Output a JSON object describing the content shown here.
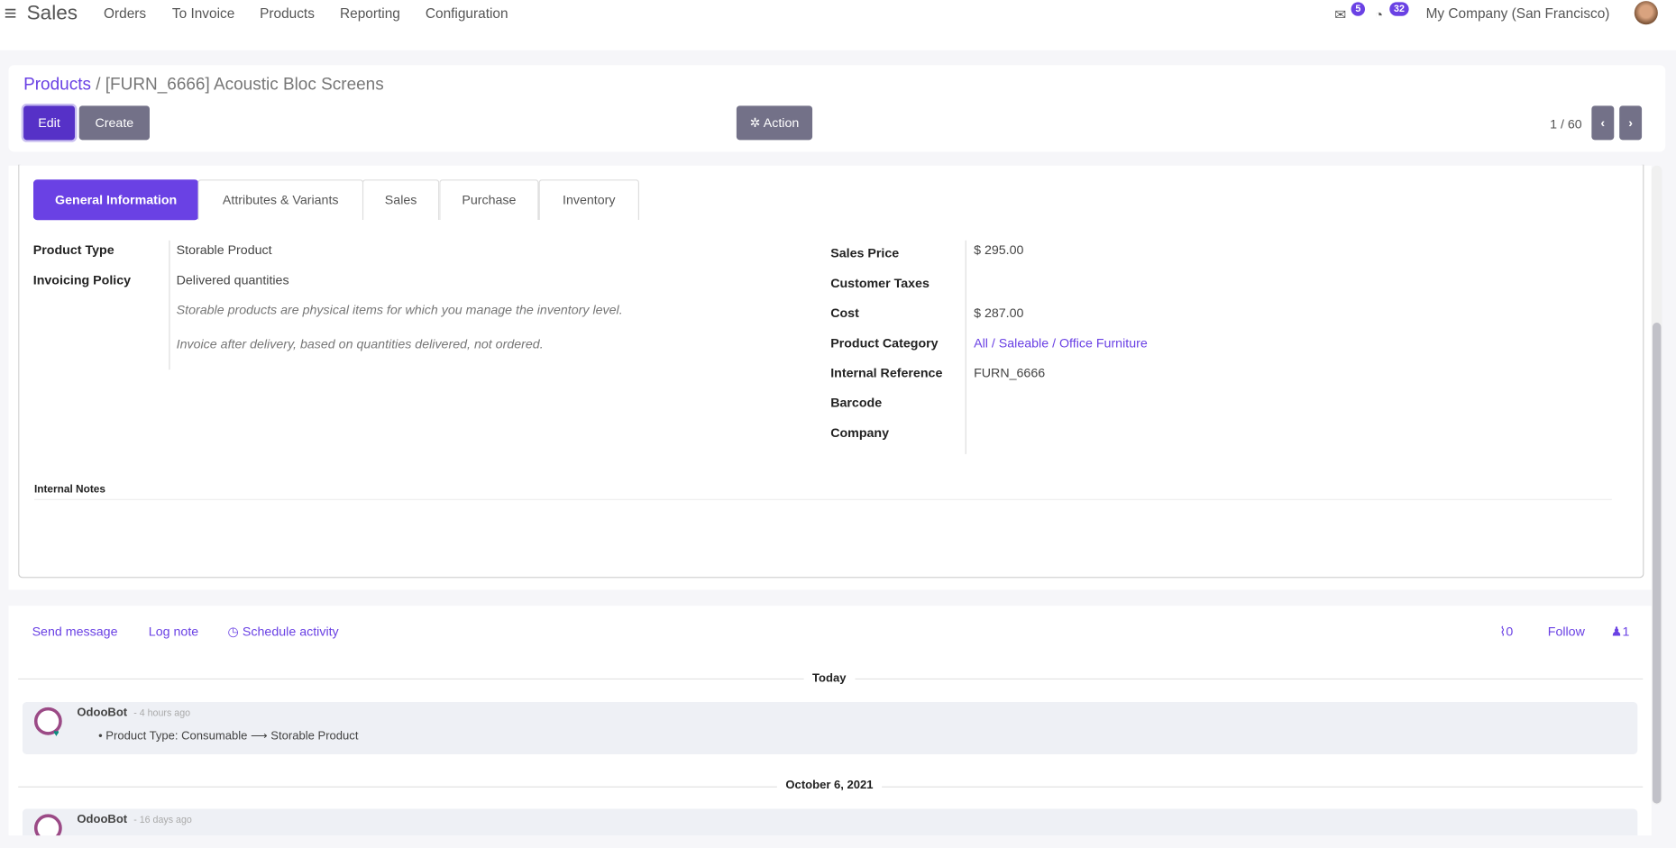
{
  "navbar": {
    "app_name": "Sales",
    "menu": [
      "Orders",
      "To Invoice",
      "Products",
      "Reporting",
      "Configuration"
    ],
    "messages_badge": "5",
    "activities_badge": "32",
    "company": "My Company (San Francisco)"
  },
  "control_panel": {
    "breadcrumb_root": "Products",
    "breadcrumb_sep": "/",
    "record_title": "[FURN_6666] Acoustic Bloc Screens",
    "edit_label": "Edit",
    "create_label": "Create",
    "action_label": "Action",
    "pager": "1 / 60"
  },
  "tabs": [
    "General Information",
    "Attributes & Variants",
    "Sales",
    "Purchase",
    "Inventory"
  ],
  "form": {
    "left": [
      {
        "label": "Product Type",
        "value": "Storable Product"
      },
      {
        "label": "Invoicing Policy",
        "value": "Delivered quantities"
      }
    ],
    "help_type": "Storable products are physical items for which you manage the inventory level.",
    "help_invoice": "Invoice after delivery, based on quantities delivered, not ordered.",
    "right": [
      {
        "label": "Sales Price",
        "value": "$ 295.00"
      },
      {
        "label": "Customer Taxes",
        "value": ""
      },
      {
        "label": "Cost",
        "value": "$ 287.00"
      },
      {
        "label": "Product Category",
        "value": "All / Saleable / Office Furniture"
      },
      {
        "label": "Internal Reference",
        "value": "FURN_6666"
      },
      {
        "label": "Barcode",
        "value": ""
      },
      {
        "label": "Company",
        "value": ""
      }
    ],
    "internal_notes_label": "Internal Notes"
  },
  "chatter": {
    "send_message": "Send message",
    "log_note": "Log note",
    "schedule_activity": "Schedule activity",
    "attachments_count": "0",
    "follow": "Follow",
    "followers_count": "1",
    "groups": [
      {
        "date": "Today",
        "author": "OdooBot",
        "time": "- 4 hours ago",
        "change": "Product Type: Consumable ⟶ Storable Product"
      },
      {
        "date": "October 6, 2021",
        "author": "OdooBot",
        "time": "- 16 days ago"
      }
    ]
  },
  "colors": {
    "accent": "#6a41e4",
    "edit_button": "#5631c7",
    "secondary_button": "#737188"
  }
}
